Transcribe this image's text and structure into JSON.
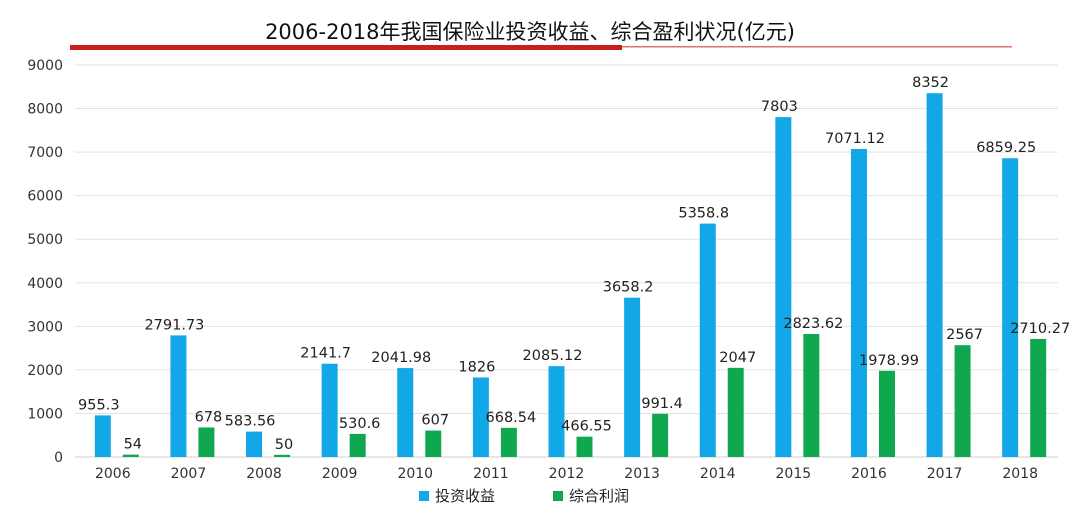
{
  "chart_data": {
    "type": "bar",
    "title": "2006-2018年我国保险业投资收益、综合盈利状况(亿元)",
    "categories": [
      "2006",
      "2007",
      "2008",
      "2009",
      "2010",
      "2011",
      "2012",
      "2013",
      "2014",
      "2015",
      "2016",
      "2017",
      "2018"
    ],
    "series": [
      {
        "name": "投资收益",
        "color": "#12a7e6",
        "values": [
          955.3,
          2791.73,
          583.56,
          2141.7,
          2041.98,
          1826,
          2085.12,
          3658.2,
          5358.8,
          7803,
          7071.12,
          8352,
          6859.25
        ],
        "labels": [
          "955.3",
          "2791.73",
          "583.56",
          "2141.7",
          "2041.98",
          "1826",
          "2085.12",
          "3658.2",
          "5358.8",
          "7803",
          "7071.12",
          "8352",
          "6859.25"
        ]
      },
      {
        "name": "综合利润",
        "color": "#10a84e",
        "values": [
          54,
          678,
          50,
          530.6,
          607,
          668.54,
          466.55,
          991.4,
          2047,
          2823.62,
          1978.99,
          2567,
          2710.27
        ],
        "labels": [
          "54",
          "678",
          "50",
          "530.6",
          "607",
          "668.54",
          "466.55",
          "991.4",
          "2047",
          "2823.62",
          "1978.99",
          "2567",
          "2710.27"
        ]
      }
    ],
    "ylim": [
      0,
      9000
    ],
    "yticks": [
      "0",
      "1000",
      "2000",
      "3000",
      "4000",
      "5000",
      "6000",
      "7000",
      "8000",
      "9000"
    ],
    "grid": true,
    "legend": "bottom",
    "accent_colors": {
      "title_bar": "#c81e1e",
      "title_line": "#e07070"
    }
  }
}
